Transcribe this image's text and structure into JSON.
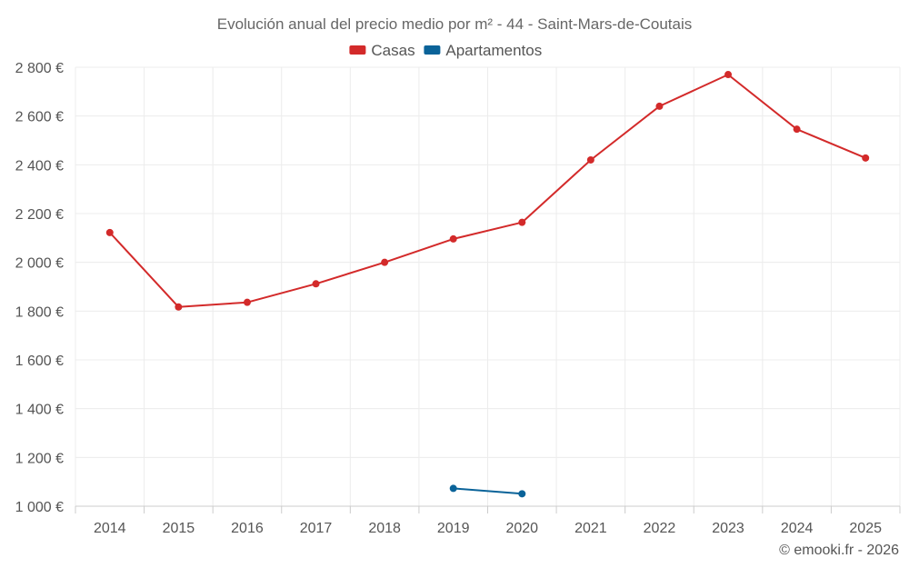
{
  "chart_data": {
    "type": "line",
    "title": "Evolución anual del precio medio por m² - 44 - Saint-Mars-de-Coutais",
    "categories": [
      "2014",
      "2015",
      "2016",
      "2017",
      "2018",
      "2019",
      "2020",
      "2021",
      "2022",
      "2023",
      "2024",
      "2025"
    ],
    "series": [
      {
        "name": "Casas",
        "color": "#d32a2a",
        "values": [
          2122,
          1817,
          1836,
          1912,
          2000,
          2096,
          2164,
          2420,
          2640,
          2770,
          2546,
          2428
        ]
      },
      {
        "name": "Apartamentos",
        "color": "#0a6399",
        "values": [
          null,
          null,
          null,
          null,
          null,
          1073,
          1051,
          null,
          null,
          null,
          null,
          null
        ]
      }
    ],
    "ylim": [
      1000,
      2800
    ],
    "yticks": [
      1000,
      1200,
      1400,
      1600,
      1800,
      2000,
      2200,
      2400,
      2600,
      2800
    ],
    "ytick_labels": [
      "1 000 €",
      "1 200 €",
      "1 400 €",
      "1 600 €",
      "1 800 €",
      "2 000 €",
      "2 200 €",
      "2 400 €",
      "2 600 €",
      "2 800 €"
    ],
    "grid": true,
    "legend_position": "top-center",
    "credit": "© emooki.fr - 2026"
  }
}
